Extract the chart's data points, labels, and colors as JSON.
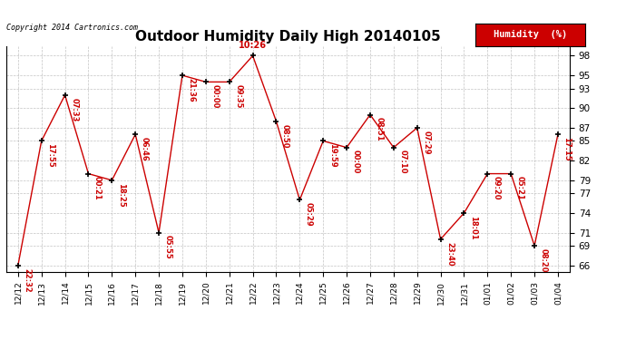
{
  "title": "Outdoor Humidity Daily High 20140105",
  "copyright": "Copyright 2014 Cartronics.com",
  "legend_label": "Humidity  (%)",
  "x_labels": [
    "12/12",
    "12/13",
    "12/14",
    "12/15",
    "12/16",
    "12/17",
    "12/18",
    "12/19",
    "12/20",
    "12/21",
    "12/22",
    "12/23",
    "12/24",
    "12/25",
    "12/26",
    "12/27",
    "12/28",
    "12/29",
    "12/30",
    "12/31",
    "01/01",
    "01/02",
    "01/03",
    "01/04"
  ],
  "y_values": [
    66,
    85,
    92,
    80,
    79,
    86,
    71,
    95,
    94,
    94,
    98,
    88,
    76,
    85,
    84,
    89,
    84,
    87,
    70,
    74,
    80,
    80,
    69,
    86
  ],
  "point_labels": [
    "22:32",
    "17:55",
    "07:33",
    "00:21",
    "18:25",
    "06:46",
    "05:55",
    "21:36",
    "00:00",
    "09:35",
    "10:26",
    "08:50",
    "05:29",
    "19:59",
    "00:00",
    "08:51",
    "07:10",
    "07:29",
    "23:40",
    "18:01",
    "09:20",
    "05:21",
    "08:20",
    "17:15"
  ],
  "line_color": "#cc0000",
  "marker_color": "#000000",
  "label_color": "#cc0000",
  "background_color": "#ffffff",
  "grid_color": "#aaaaaa",
  "ylim": [
    65,
    99.5
  ],
  "yticks": [
    66,
    69,
    71,
    74,
    77,
    79,
    82,
    85,
    87,
    90,
    93,
    95,
    98
  ],
  "title_fontsize": 11,
  "legend_bg": "#cc0000",
  "legend_text_color": "#ffffff",
  "fig_width": 6.9,
  "fig_height": 3.75,
  "dpi": 100
}
